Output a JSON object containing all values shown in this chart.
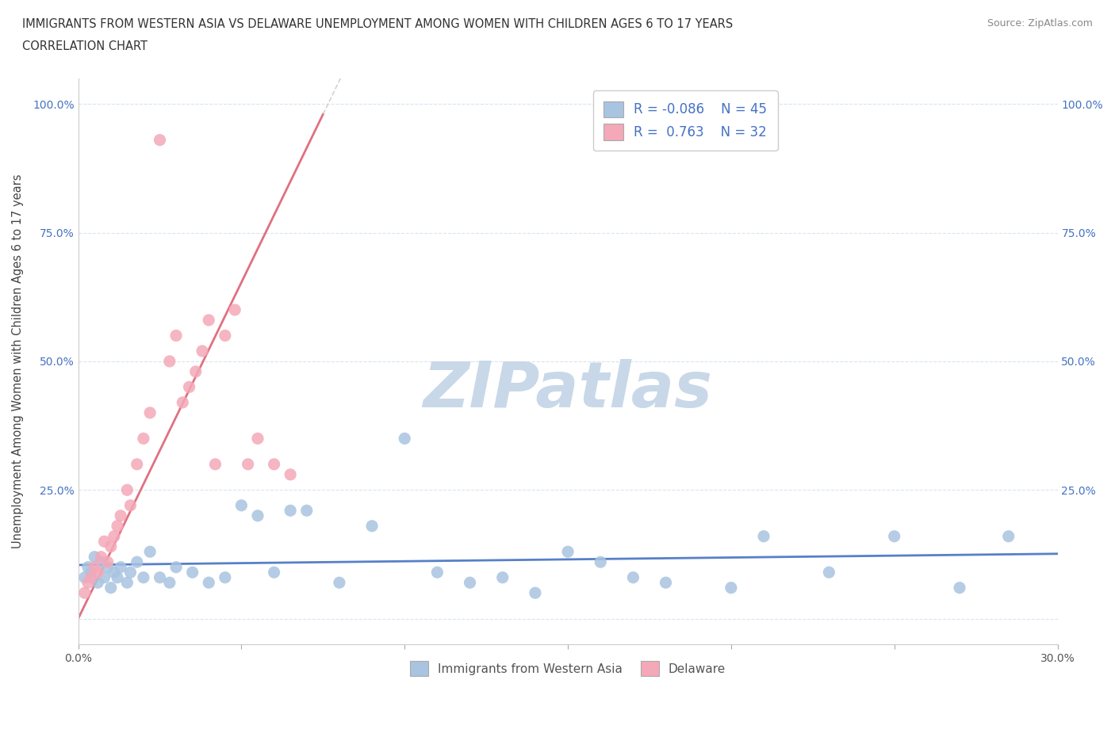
{
  "title_line1": "IMMIGRANTS FROM WESTERN ASIA VS DELAWARE UNEMPLOYMENT AMONG WOMEN WITH CHILDREN AGES 6 TO 17 YEARS",
  "title_line2": "CORRELATION CHART",
  "source_text": "Source: ZipAtlas.com",
  "ylabel": "Unemployment Among Women with Children Ages 6 to 17 years",
  "xlim": [
    0.0,
    0.3
  ],
  "ylim": [
    -0.05,
    1.05
  ],
  "xticks": [
    0.0,
    0.05,
    0.1,
    0.15,
    0.2,
    0.25,
    0.3
  ],
  "xticklabels": [
    "0.0%",
    "",
    "",
    "",
    "",
    "",
    "30.0%"
  ],
  "yticks": [
    0.0,
    0.25,
    0.5,
    0.75,
    1.0
  ],
  "yticklabels": [
    "",
    "25.0%",
    "50.0%",
    "75.0%",
    "100.0%"
  ],
  "legend_blue_r": "-0.086",
  "legend_blue_n": "45",
  "legend_pink_r": "0.763",
  "legend_pink_n": "32",
  "blue_color": "#a8c4e0",
  "pink_color": "#f4a8b8",
  "trendline_blue_color": "#4472c4",
  "trendline_pink_color": "#e07080",
  "trendline_gray_color": "#c0c0c0",
  "watermark": "ZIPatlas",
  "watermark_color": "#c8d8e8",
  "grid_color": "#d8e4f0",
  "background_color": "#ffffff",
  "legend_label_blue": "Immigrants from Western Asia",
  "legend_label_pink": "Delaware",
  "blue_scatter_x": [
    0.002,
    0.003,
    0.004,
    0.005,
    0.006,
    0.007,
    0.008,
    0.009,
    0.01,
    0.011,
    0.012,
    0.013,
    0.015,
    0.016,
    0.018,
    0.02,
    0.022,
    0.025,
    0.028,
    0.03,
    0.035,
    0.04,
    0.045,
    0.05,
    0.055,
    0.06,
    0.065,
    0.07,
    0.08,
    0.09,
    0.1,
    0.11,
    0.12,
    0.13,
    0.14,
    0.15,
    0.16,
    0.17,
    0.18,
    0.2,
    0.21,
    0.23,
    0.25,
    0.27,
    0.285
  ],
  "blue_scatter_y": [
    0.08,
    0.1,
    0.09,
    0.12,
    0.07,
    0.11,
    0.08,
    0.1,
    0.06,
    0.09,
    0.08,
    0.1,
    0.07,
    0.09,
    0.11,
    0.08,
    0.13,
    0.08,
    0.07,
    0.1,
    0.09,
    0.07,
    0.08,
    0.22,
    0.2,
    0.09,
    0.21,
    0.21,
    0.07,
    0.18,
    0.35,
    0.09,
    0.07,
    0.08,
    0.05,
    0.13,
    0.11,
    0.08,
    0.07,
    0.06,
    0.16,
    0.09,
    0.16,
    0.06,
    0.16
  ],
  "pink_scatter_x": [
    0.002,
    0.003,
    0.004,
    0.005,
    0.006,
    0.007,
    0.008,
    0.009,
    0.01,
    0.011,
    0.012,
    0.013,
    0.015,
    0.016,
    0.018,
    0.02,
    0.022,
    0.025,
    0.028,
    0.03,
    0.032,
    0.034,
    0.036,
    0.038,
    0.04,
    0.042,
    0.045,
    0.048,
    0.052,
    0.055,
    0.06,
    0.065
  ],
  "pink_scatter_y": [
    0.05,
    0.07,
    0.08,
    0.1,
    0.09,
    0.12,
    0.15,
    0.11,
    0.14,
    0.16,
    0.18,
    0.2,
    0.25,
    0.22,
    0.3,
    0.35,
    0.4,
    0.93,
    0.5,
    0.55,
    0.42,
    0.45,
    0.48,
    0.52,
    0.58,
    0.3,
    0.55,
    0.6,
    0.3,
    0.35,
    0.3,
    0.28
  ]
}
